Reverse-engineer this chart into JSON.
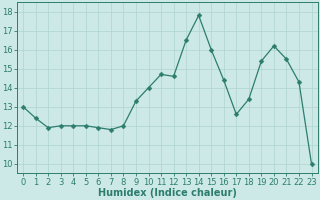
{
  "x": [
    0,
    1,
    2,
    3,
    4,
    5,
    6,
    7,
    8,
    9,
    10,
    11,
    12,
    13,
    14,
    15,
    16,
    17,
    18,
    19,
    20,
    21,
    22,
    23
  ],
  "y": [
    13.0,
    12.4,
    11.9,
    12.0,
    12.0,
    12.0,
    11.9,
    11.8,
    12.0,
    13.3,
    14.0,
    14.7,
    14.6,
    16.5,
    17.8,
    16.0,
    14.4,
    12.6,
    13.4,
    15.4,
    16.2,
    15.5,
    14.3,
    10.0
  ],
  "line_color": "#2d7d6e",
  "marker": "D",
  "marker_size": 2.5,
  "bg_color": "#cce9e7",
  "grid_color": "#afd4d1",
  "title": "",
  "xlabel": "Humidex (Indice chaleur)",
  "ylabel": "",
  "xlim": [
    -0.5,
    23.5
  ],
  "ylim": [
    9.5,
    18.5
  ],
  "yticks": [
    10,
    11,
    12,
    13,
    14,
    15,
    16,
    17,
    18
  ],
  "xticks": [
    0,
    1,
    2,
    3,
    4,
    5,
    6,
    7,
    8,
    9,
    10,
    11,
    12,
    13,
    14,
    15,
    16,
    17,
    18,
    19,
    20,
    21,
    22,
    23
  ],
  "tick_color": "#2d7d6e",
  "label_color": "#2d7d6e",
  "spine_color": "#2d7d6e",
  "xlabel_fontsize": 7.0,
  "tick_fontsize": 6.0
}
